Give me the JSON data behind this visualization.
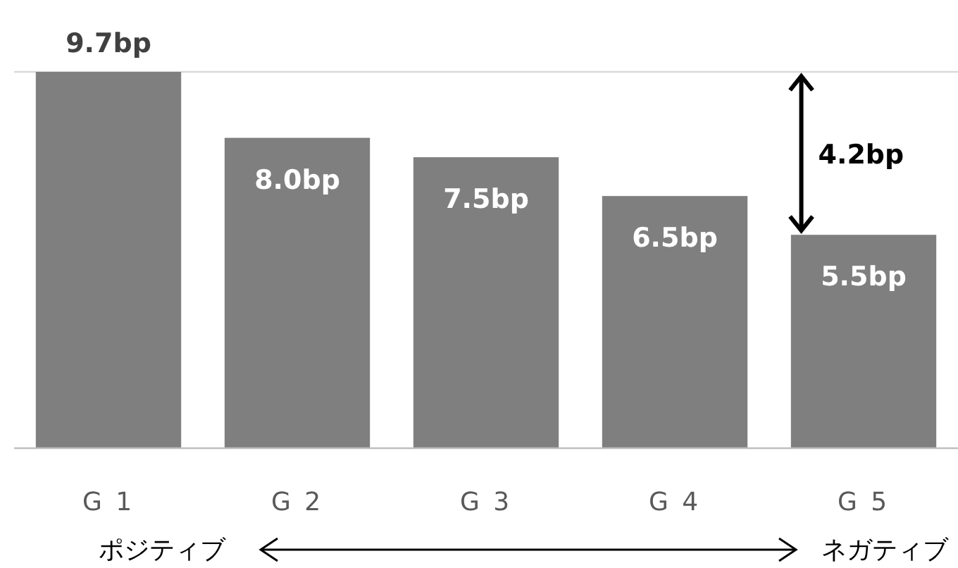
{
  "chart_data": {
    "type": "bar",
    "categories": [
      "G 1",
      "G 2",
      "G 3",
      "G 4",
      "G 5"
    ],
    "values": [
      9.7,
      8.0,
      7.5,
      6.5,
      5.5
    ],
    "value_labels": [
      "9.7bp",
      "8.0bp",
      "7.5bp",
      "6.5bp",
      "5.5bp"
    ],
    "color": "#7f7f7f",
    "ylim": [
      0,
      9.7
    ],
    "ref_lines": [
      {
        "axis": "y",
        "value": 9.7,
        "color": "#d9d9d9"
      }
    ],
    "annotations": [
      "4.2bp",
      "ポジティブ",
      "ネガティブ"
    ]
  }
}
